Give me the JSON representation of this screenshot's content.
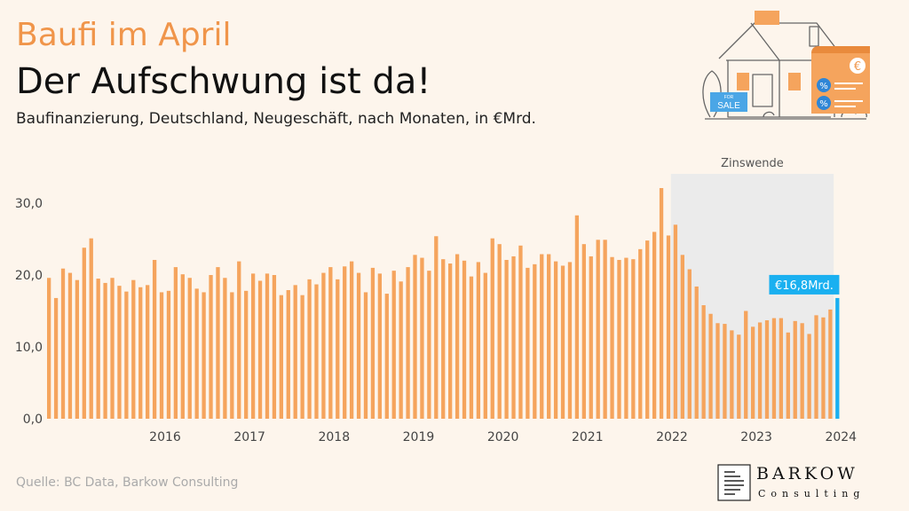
{
  "header": {
    "kicker": "Baufi im April",
    "headline": "Der Aufschwung ist da!",
    "subtitle": "Baufinanzierung, Deutschland, Neugeschäft, nach Monaten, in €Mrd."
  },
  "footer": {
    "source": "Quelle: BC Data, Barkow Consulting"
  },
  "logo": {
    "name": "BARKOW",
    "tagline": "Consulting"
  },
  "illustration": {
    "sign_top": "FOR",
    "sign_label": "SALE",
    "currency_symbol": "€",
    "percent_symbol": "%"
  },
  "colors": {
    "bar": "#f5a45d",
    "highlight": "#1ab0f0",
    "shade": "#ebebeb",
    "kicker": "#f0954a"
  },
  "chart_data": {
    "type": "bar",
    "title": "",
    "xlabel": "",
    "ylabel": "",
    "ylim": [
      0,
      32
    ],
    "yticks": [
      "0,0",
      "10,0",
      "20,0",
      "30,0"
    ],
    "year_labels": [
      "2016",
      "2017",
      "2018",
      "2019",
      "2020",
      "2021",
      "2022",
      "2023",
      "2024"
    ],
    "start": "2015-02",
    "shade_label": "Zinswende",
    "shade_from": "2022-07",
    "highlight_label": "€16,8Mrd.",
    "values": [
      19.6,
      16.8,
      20.9,
      20.3,
      19.3,
      23.8,
      25.1,
      19.5,
      18.9,
      19.6,
      18.5,
      17.7,
      19.3,
      18.3,
      18.6,
      22.1,
      17.6,
      17.8,
      21.1,
      20.1,
      19.6,
      18.1,
      17.6,
      20.0,
      21.1,
      19.6,
      17.6,
      21.9,
      17.8,
      20.2,
      19.2,
      20.2,
      20.0,
      17.2,
      17.9,
      18.6,
      17.2,
      19.4,
      18.7,
      20.3,
      21.1,
      19.4,
      21.2,
      21.9,
      20.3,
      17.6,
      21.0,
      20.2,
      17.4,
      20.6,
      19.1,
      21.1,
      22.8,
      22.4,
      20.6,
      25.4,
      22.2,
      21.6,
      22.9,
      22.0,
      19.8,
      21.8,
      20.3,
      25.1,
      24.3,
      22.1,
      22.6,
      24.1,
      21.0,
      21.5,
      22.9,
      22.9,
      21.9,
      21.3,
      21.8,
      28.3,
      24.3,
      22.6,
      24.9,
      24.9,
      22.5,
      22.1,
      22.4,
      22.2,
      23.6,
      24.8,
      26.0,
      32.1,
      25.5,
      27.0,
      22.8,
      20.8,
      18.4,
      15.8,
      14.6,
      13.3,
      13.2,
      12.3,
      11.7,
      15.0,
      12.8,
      13.4,
      13.7,
      14.0,
      14.0,
      12.0,
      13.6,
      13.3,
      11.8,
      14.4,
      14.1,
      15.2,
      16.8
    ]
  }
}
